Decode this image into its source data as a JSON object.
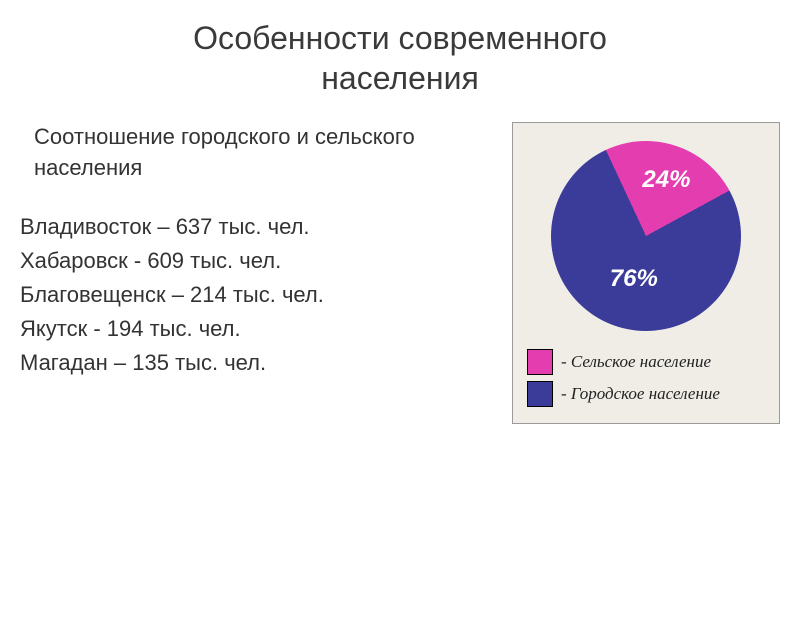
{
  "title_line1": "Особенности современного",
  "title_line2": "населения",
  "subheading": "Соотношение городского и сельского населения",
  "cities": [
    "Владивосток – 637 тыс. чел.",
    "Хабаровск - 609 тыс. чел.",
    "Благовещенск – 214 тыс. чел.",
    "Якутск - 194 тыс. чел.",
    "Магадан – 135 тыс. чел."
  ],
  "chart": {
    "type": "pie",
    "background_color": "#f0ede6",
    "border_color": "#9a9a9a",
    "slices": [
      {
        "label": "24%",
        "value": 24,
        "color": "#e33db0"
      },
      {
        "label": "76%",
        "value": 76,
        "color": "#3b3b9a"
      }
    ],
    "start_angle_deg": -25,
    "label_fontsize": 24,
    "label_color": "#ffffff",
    "legend": [
      {
        "swatch_color": "#e33db0",
        "text": "- Сельское население"
      },
      {
        "swatch_color": "#3b3b9a",
        "text": "- Городское население"
      }
    ],
    "legend_fontsize": 17
  }
}
